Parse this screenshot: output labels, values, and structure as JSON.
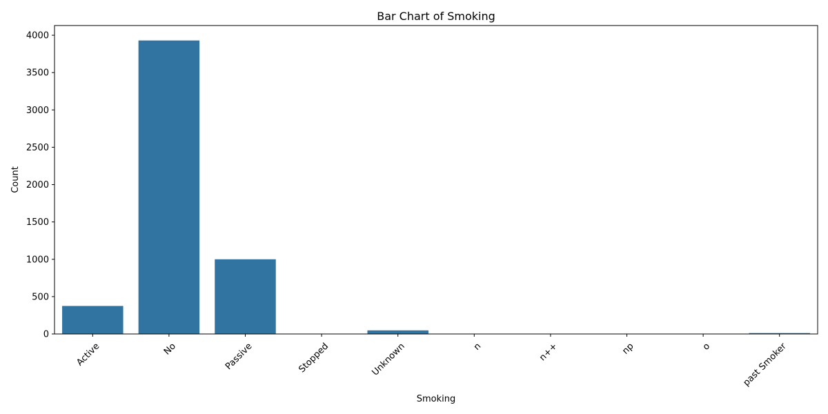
{
  "chart_data": {
    "type": "bar",
    "title": "Bar Chart of Smoking",
    "xlabel": "Smoking",
    "ylabel": "Count",
    "categories": [
      "Active",
      "No",
      "Passive",
      "Stopped",
      "Unknown",
      "n",
      "n++",
      "np",
      "o",
      "past Smoker"
    ],
    "values": [
      375,
      3930,
      1000,
      1,
      48,
      1,
      1,
      1,
      1,
      12
    ],
    "ylim": [
      0,
      4130
    ],
    "yticks": [
      0,
      500,
      1000,
      1500,
      2000,
      2500,
      3000,
      3500,
      4000
    ],
    "bar_color": "#3274a1",
    "grid": false,
    "x_tick_rotation": 45
  }
}
